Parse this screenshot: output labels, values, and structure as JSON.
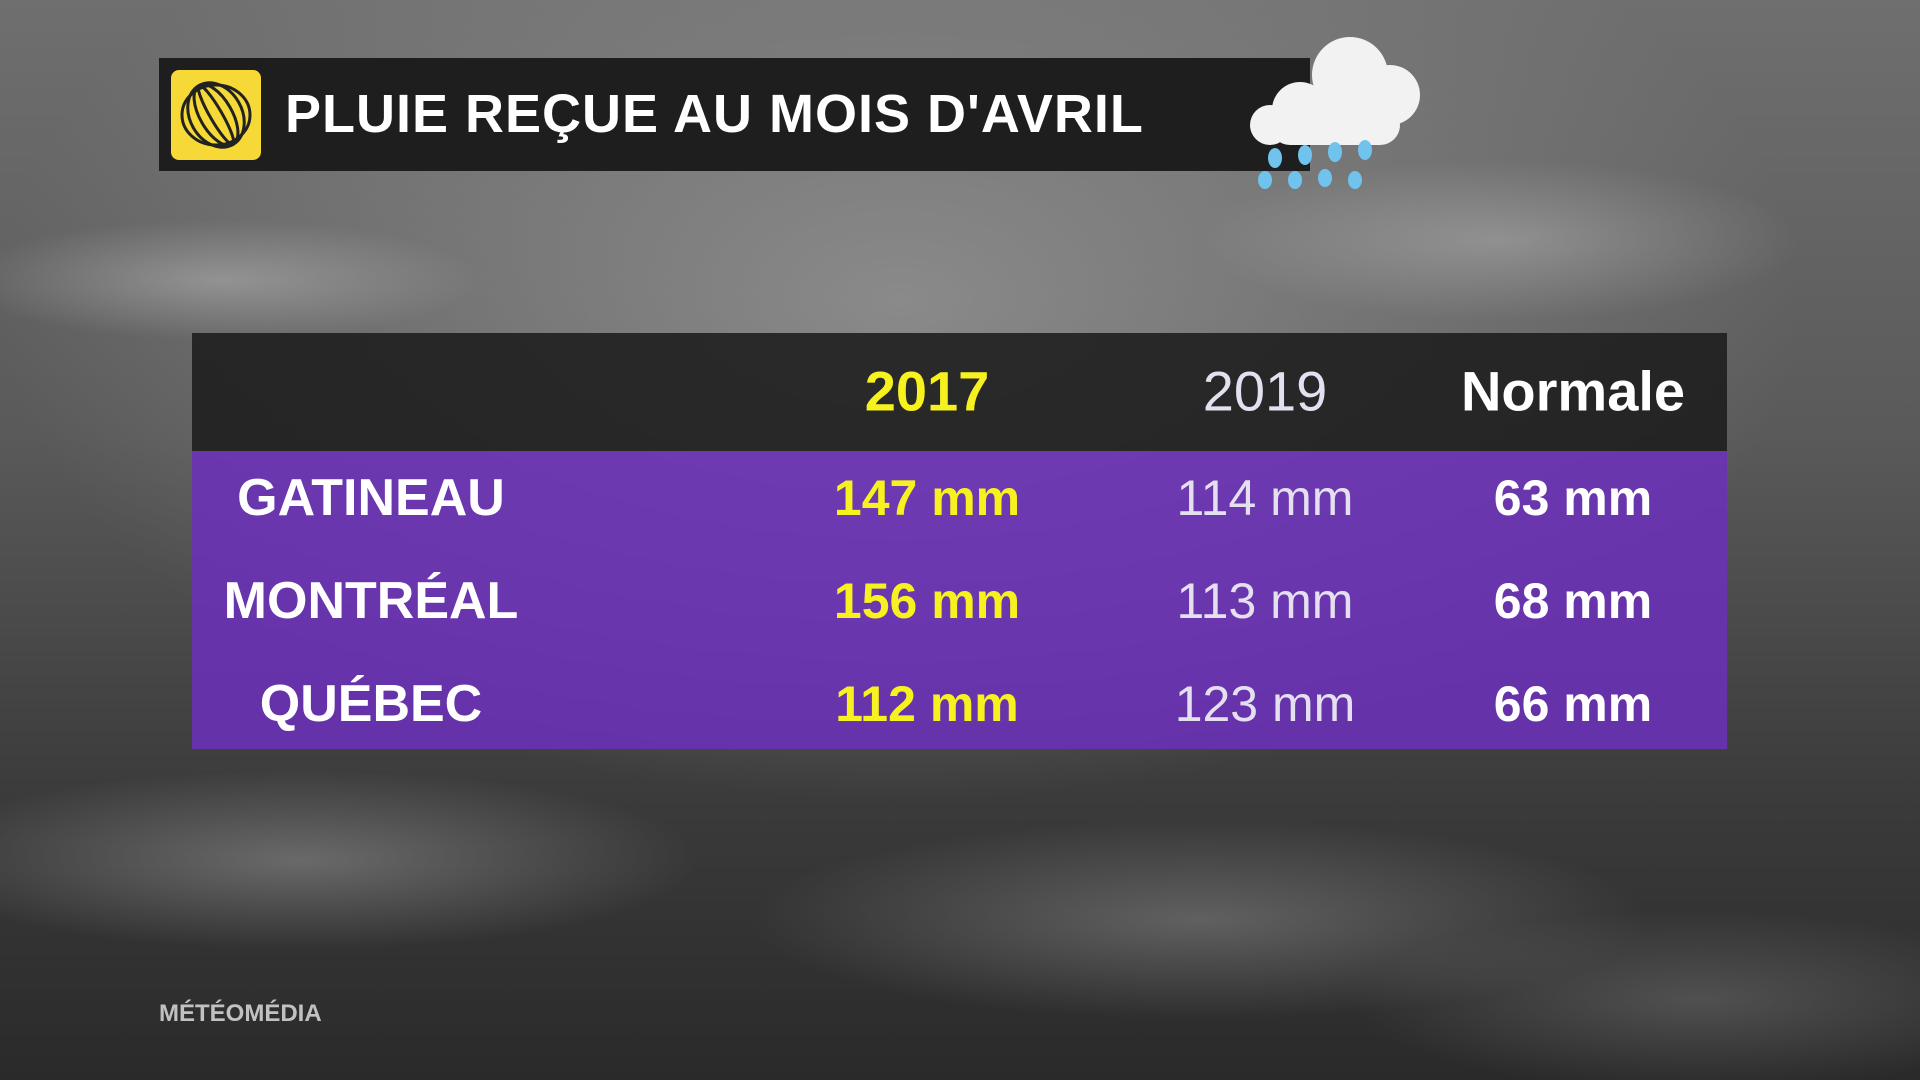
{
  "header": {
    "title": "PLUIE REÇUE AU MOIS D'AVRIL"
  },
  "table": {
    "columns": [
      "2017",
      "2019",
      "Normale"
    ],
    "rows": [
      [
        "GATINEAU",
        "147 mm",
        "114 mm",
        "63 mm"
      ],
      [
        "MONTRÉAL",
        "156 mm",
        "113 mm",
        "68 mm"
      ],
      [
        "QUÉBEC",
        "112 mm",
        "123 mm",
        "66 mm"
      ]
    ]
  },
  "footer": {
    "brand": "MÉTÉOMÉDIA"
  }
}
